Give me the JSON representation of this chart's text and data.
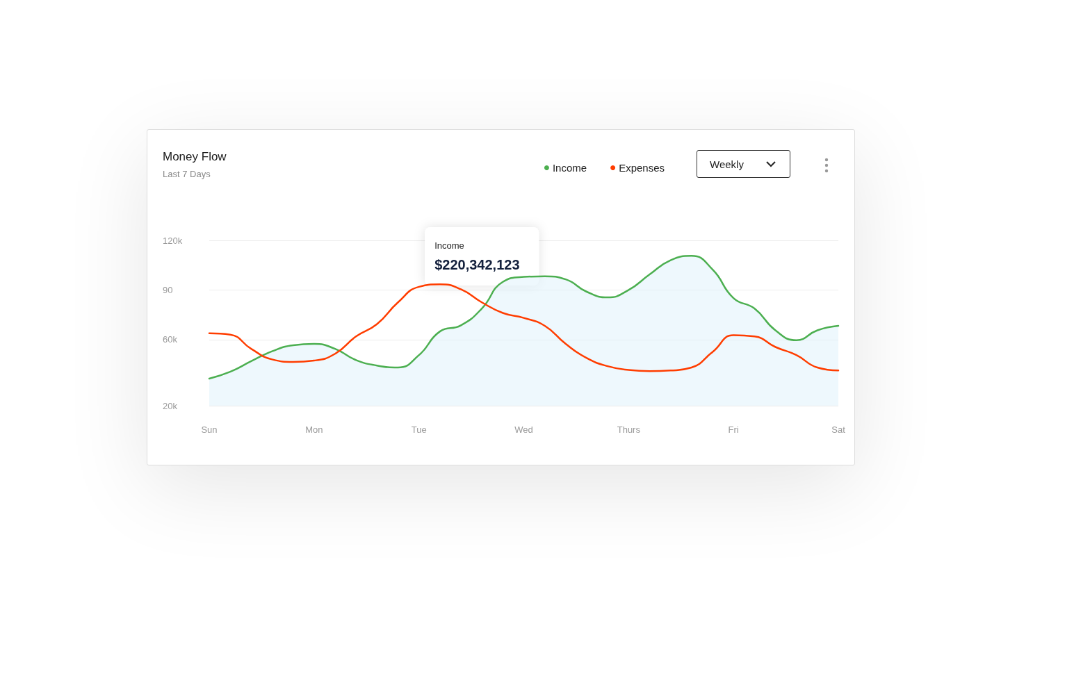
{
  "chart_data": {
    "type": "line",
    "title": "Money Flow",
    "subtitle": "Last 7 Days",
    "categories": [
      "Sun",
      null,
      null,
      null,
      null,
      "Mon",
      null,
      null,
      null,
      null,
      "Tue",
      null,
      null,
      null,
      null,
      "Wed",
      null,
      null,
      null,
      null,
      "Thurs",
      null,
      null,
      null,
      null,
      "Fri",
      null,
      null,
      null,
      null,
      "Sat"
    ],
    "series": [
      {
        "name": "Income",
        "type": "area",
        "color": "#4caf50",
        "values": [
          36.4,
          40.5,
          46.9,
          52.9,
          56.6,
          57.4,
          54.4,
          47.6,
          44.3,
          43.1,
          50.6,
          64.9,
          68.6,
          78.8,
          94.9,
          97.9,
          98.3,
          96.4,
          88.9,
          85.5,
          90,
          99.4,
          108,
          110.6,
          102.4,
          85.1,
          78.8,
          65.6,
          59.6,
          65.6,
          68.3
        ]
      },
      {
        "name": "Expenses",
        "color": "#ff3d00",
        "values": [
          63.8,
          63,
          54.4,
          48,
          46.5,
          47.3,
          51.4,
          61.9,
          69.4,
          82.5,
          91.9,
          93.4,
          90.4,
          82.5,
          76.1,
          73.1,
          68.3,
          57.4,
          48.8,
          43.9,
          41.6,
          40.9,
          41.3,
          43.1,
          52.5,
          62.6,
          61.9,
          55.5,
          50.6,
          43.1,
          41.3
        ]
      }
    ],
    "ylim": [
      20,
      120
    ],
    "yticks": [
      {
        "value": 20,
        "label": "20k"
      },
      {
        "value": 60,
        "label": "60k"
      },
      {
        "value": 90,
        "label": "90"
      },
      {
        "value": 120,
        "label": "120k"
      }
    ],
    "grid": "y",
    "legend": "top right",
    "marker": "none",
    "line_style": "solid",
    "annotations": [
      "Income",
      "$220,342,123",
      "Weekly"
    ]
  }
}
